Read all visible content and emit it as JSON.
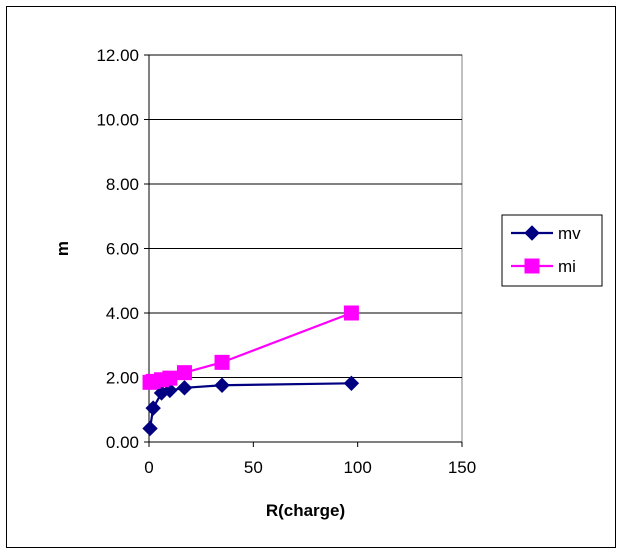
{
  "chart_data": {
    "type": "line",
    "title": "",
    "xlabel": "R(charge)",
    "ylabel": "m",
    "xlim": [
      0,
      150
    ],
    "ylim": [
      0,
      12
    ],
    "x_ticks": [
      "0",
      "50",
      "100",
      "150"
    ],
    "y_ticks": [
      "0.00",
      "2.00",
      "4.00",
      "6.00",
      "8.00",
      "10.00",
      "12.00"
    ],
    "grid": "horizontal major gridlines",
    "legend_position": "right",
    "series": [
      {
        "name": "mv",
        "color": "#000080",
        "marker": "diamond",
        "x": [
          0.5,
          2,
          6,
          10,
          17,
          35,
          97
        ],
        "y": [
          0.42,
          1.05,
          1.52,
          1.6,
          1.68,
          1.76,
          1.82
        ]
      },
      {
        "name": "mi",
        "color": "#FF00FF",
        "marker": "square",
        "x": [
          0.5,
          2,
          6,
          10,
          17,
          35,
          97
        ],
        "y": [
          1.85,
          1.88,
          1.93,
          1.98,
          2.15,
          2.47,
          4.0
        ]
      }
    ]
  }
}
